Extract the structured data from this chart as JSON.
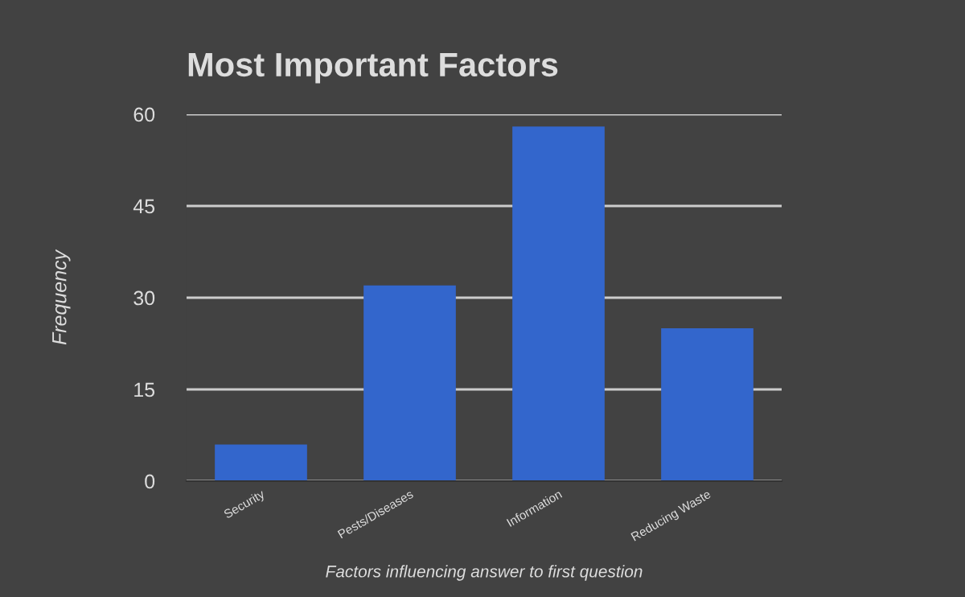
{
  "chart_data": {
    "type": "bar",
    "title": "Most Important Factors",
    "xlabel": "Factors influencing answer to first question",
    "ylabel": "Frequency",
    "categories": [
      "Security",
      "Pests/Diseases",
      "Information",
      "Reducing Waste"
    ],
    "series": [
      {
        "color": "#3366cc",
        "values": [
          6,
          32,
          58,
          25
        ]
      }
    ],
    "ylim": [
      0,
      60
    ],
    "yticks": [
      0,
      15,
      30,
      45,
      60
    ],
    "grid": "y"
  }
}
